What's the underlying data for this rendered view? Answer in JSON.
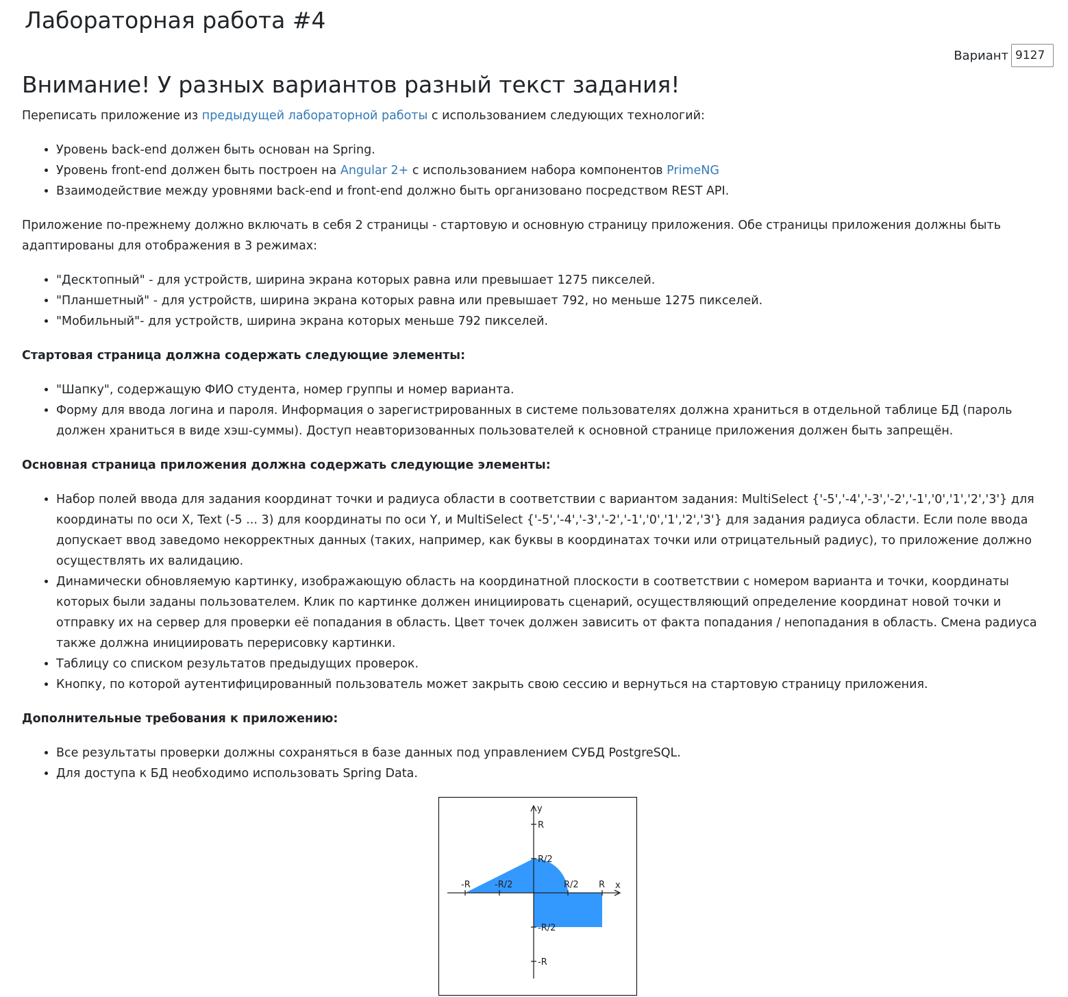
{
  "header": {
    "title": "Лабораторная работа #4",
    "variant_label": "Вариант",
    "variant_value": "9127"
  },
  "main": {
    "heading": "Внимание! У разных вариантов разный текст задания!",
    "intro": {
      "before": "Переписать приложение из ",
      "link": "предыдущей лабораторной работы",
      "after": " с использованием следующих технологий:"
    },
    "tech_list": {
      "item1": "Уровень back-end должен быть основан на Spring.",
      "item2_before": "Уровень front-end должен быть построен на ",
      "item2_link1": "Angular 2+",
      "item2_mid": " с использованием набора компонентов ",
      "item2_link2": "PrimeNG",
      "item3": "Взаимодействие между уровнями back-end и front-end должно быть организовано посредством REST API."
    },
    "modes_intro": "Приложение по-прежнему должно включать в себя 2 страницы - стартовую и основную страницу приложения. Обе страницы приложения должны быть адаптированы для отображения в 3 режимах:",
    "modes": [
      "\"Десктопный\" - для устройств, ширина экрана которых равна или превышает 1275 пикселей.",
      "\"Планшетный\" - для устройств, ширина экрана которых равна или превышает 792, но меньше 1275 пикселей.",
      "\"Мобильный\"- для устройств, ширина экрана которых меньше 792 пикселей."
    ],
    "start_page_heading": "Стартовая страница должна содержать следующие элементы:",
    "start_page_items": [
      "\"Шапку\", содержащую ФИО студента, номер группы и номер варианта.",
      "Форму для ввода логина и пароля. Информация о зарегистрированных в системе пользователях должна храниться в отдельной таблице БД (пароль должен храниться в виде хэш-суммы). Доступ неавторизованных пользователей к основной странице приложения должен быть запрещён."
    ],
    "main_page_heading": "Основная страница приложения должна содержать следующие элементы:",
    "main_page_items": [
      "Набор полей ввода для задания координат точки и радиуса области в соответствии с вариантом задания: MultiSelect {'-5','-4','-3','-2','-1','0','1','2','3'} для координаты по оси X, Text (-5 ... 3) для координаты по оси Y, и MultiSelect {'-5','-4','-3','-2','-1','0','1','2','3'} для задания радиуса области. Если поле ввода допускает ввод заведомо некорректных данных (таких, например, как буквы в координатах точки или отрицательный радиус), то приложение должно осуществлять их валидацию.",
      "Динамически обновляемую картинку, изображающую область на координатной плоскости в соответствии с номером варианта и точки, координаты которых были заданы пользователем. Клик по картинке должен инициировать сценарий, осуществляющий определение координат новой точки и отправку их на сервер для проверки её попадания в область. Цвет точек должен зависить от факта попадания / непопадания в область. Смена радиуса также должна инициировать перерисовку картинки.",
      "Таблицу со списком результатов предыдущих проверок.",
      "Кнопку, по которой аутентифицированный пользователь может закрыть свою сессию и вернуться на стартовую страницу приложения."
    ],
    "extra_heading": "Дополнительные требования к приложению:",
    "extra_items": [
      "Все результаты проверки должны сохраняться в базе данных под управлением СУБД PostgreSQL.",
      "Для доступа к БД необходимо использовать Spring Data."
    ]
  },
  "figure": {
    "axis_x": "x",
    "axis_y": "y",
    "labels": {
      "R": "R",
      "half_R": "R/2",
      "neg_R": "-R",
      "neg_half_R": "-R/2"
    },
    "area_color": "#3399ff"
  }
}
